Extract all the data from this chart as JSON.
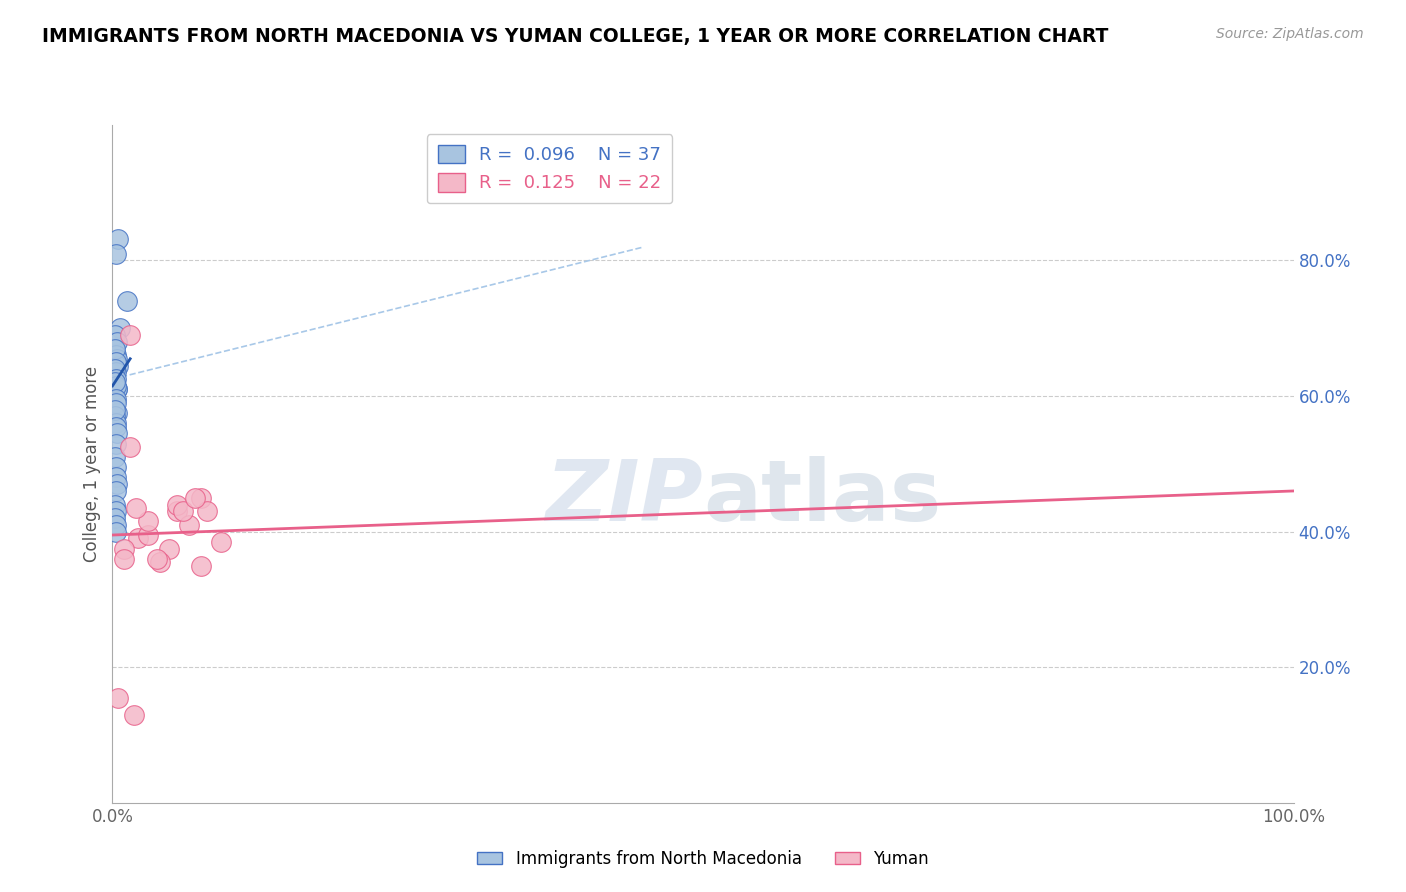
{
  "title": "IMMIGRANTS FROM NORTH MACEDONIA VS YUMAN COLLEGE, 1 YEAR OR MORE CORRELATION CHART",
  "source_text": "Source: ZipAtlas.com",
  "ylabel": "College, 1 year or more",
  "xlim": [
    0,
    1.0
  ],
  "ylim": [
    0,
    1.0
  ],
  "ytick_right_labels": [
    "20.0%",
    "40.0%",
    "60.0%",
    "80.0%"
  ],
  "ytick_right_values": [
    0.2,
    0.4,
    0.6,
    0.8
  ],
  "legend_blue_r": "0.096",
  "legend_blue_n": "37",
  "legend_pink_r": "0.125",
  "legend_pink_n": "22",
  "blue_color": "#a8c4e0",
  "blue_edge_color": "#4472c4",
  "pink_color": "#f4b8c8",
  "pink_edge_color": "#e8608a",
  "blue_line_color": "#2255aa",
  "pink_line_color": "#e8608a",
  "dashed_line_color": "#a8c8e8",
  "watermark_color": "#ccd8e8",
  "blue_scatter_x": [
    0.005,
    0.012,
    0.003,
    0.006,
    0.002,
    0.004,
    0.003,
    0.004,
    0.005,
    0.002,
    0.003,
    0.003,
    0.004,
    0.002,
    0.003,
    0.004,
    0.003,
    0.002,
    0.003,
    0.004,
    0.003,
    0.002,
    0.003,
    0.002,
    0.003,
    0.004,
    0.003,
    0.002,
    0.003,
    0.003,
    0.004,
    0.003,
    0.002,
    0.003,
    0.002,
    0.003,
    0.003
  ],
  "blue_scatter_y": [
    0.832,
    0.74,
    0.81,
    0.7,
    0.69,
    0.68,
    0.66,
    0.655,
    0.645,
    0.67,
    0.65,
    0.635,
    0.61,
    0.64,
    0.625,
    0.61,
    0.615,
    0.62,
    0.595,
    0.575,
    0.59,
    0.57,
    0.56,
    0.58,
    0.555,
    0.545,
    0.53,
    0.51,
    0.495,
    0.48,
    0.47,
    0.46,
    0.44,
    0.43,
    0.42,
    0.41,
    0.4
  ],
  "pink_scatter_x": [
    0.005,
    0.018,
    0.022,
    0.03,
    0.055,
    0.048,
    0.04,
    0.03,
    0.055,
    0.065,
    0.038,
    0.075,
    0.08,
    0.092,
    0.075,
    0.015,
    0.02,
    0.015,
    0.01,
    0.01,
    0.06,
    0.07
  ],
  "pink_scatter_y": [
    0.155,
    0.13,
    0.39,
    0.395,
    0.43,
    0.375,
    0.355,
    0.415,
    0.44,
    0.41,
    0.36,
    0.45,
    0.43,
    0.385,
    0.35,
    0.525,
    0.435,
    0.69,
    0.375,
    0.36,
    0.43,
    0.45
  ],
  "blue_trend_x": [
    0.0,
    0.015
  ],
  "blue_trend_y": [
    0.615,
    0.655
  ],
  "pink_trend_x": [
    0.0,
    1.0
  ],
  "pink_trend_y": [
    0.395,
    0.46
  ],
  "diag_line_x": [
    0.0,
    0.45
  ],
  "diag_line_y": [
    0.625,
    0.82
  ]
}
